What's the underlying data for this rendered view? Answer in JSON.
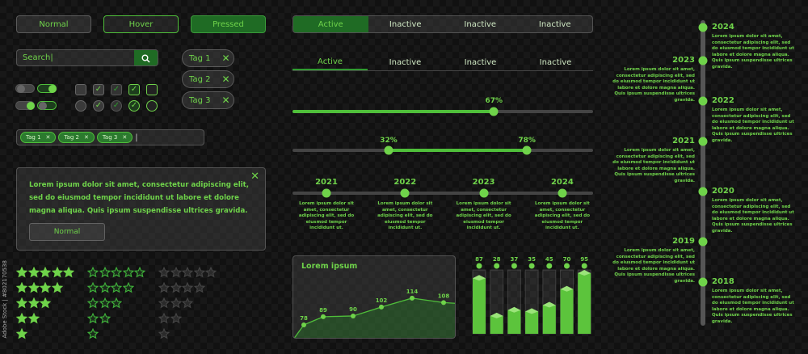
{
  "buttons": {
    "normal": "Normal",
    "hover": "Hover",
    "pressed": "Pressed"
  },
  "search": {
    "value": "Search",
    "icon": "search-icon"
  },
  "tags": [
    "Tag 1",
    "Tag 2",
    "Tag 3"
  ],
  "tag_input": {
    "chips": [
      "Tag 1",
      "Tag 2",
      "Tag 3"
    ]
  },
  "toggles": [
    {
      "on": false
    },
    {
      "on": true
    },
    {
      "on": true
    },
    {
      "on": false
    }
  ],
  "checkboxes": {
    "square": [
      false,
      true,
      true,
      true,
      false
    ],
    "round": [
      false,
      true,
      true,
      true,
      false
    ]
  },
  "alert": {
    "text": "Lorem ipsum dolor sit amet, consectetur adipiscing elit, sed do eiusmod tempor incididunt ut labore et dolore magna aliqua. Quis ipsum suspendisse ultrices gravida.",
    "button": "Normal",
    "close_icon": "close-icon"
  },
  "ratings": {
    "styles": [
      "filled",
      "outline",
      "dark"
    ],
    "levels": [
      5,
      4,
      3,
      2,
      1
    ]
  },
  "segmented_tabs": [
    {
      "label": "Active",
      "active": true
    },
    {
      "label": "Inactive"
    },
    {
      "label": "Inactive"
    },
    {
      "label": "Inactive"
    }
  ],
  "underline_tabs": [
    {
      "label": "Active",
      "active": true
    },
    {
      "label": "Inactive"
    },
    {
      "label": "Inactive"
    },
    {
      "label": "Inactive"
    }
  ],
  "slider": {
    "value": 67,
    "label": "67%"
  },
  "range_slider": {
    "low": 32,
    "high": 78,
    "low_label": "32%",
    "high_label": "78%"
  },
  "h_timeline": [
    {
      "year": "2021",
      "text": "Lorem ipsum dolor sit amet, consectetur adipiscing elit, sed do eiusmod tempor incididunt ut."
    },
    {
      "year": "2022",
      "text": "Lorem ipsum dolor sit amet, consectetur adipiscing elit, sed do eiusmod tempor incididunt ut."
    },
    {
      "year": "2023",
      "text": "Lorem ipsum dolor sit amet, consectetur adipiscing elit, sed do eiusmod tempor incididunt ut."
    },
    {
      "year": "2024",
      "text": "Lorem ipsum dolor sit amet, consectetur adipiscing elit, sed do eiusmod tempor incididunt ut."
    }
  ],
  "line_chart": {
    "title": "Lorem ipsum",
    "values": [
      78,
      89,
      90,
      102,
      114,
      108
    ]
  },
  "bar_chart": {
    "values": [
      87,
      28,
      37,
      35,
      45,
      70,
      95
    ]
  },
  "v_timeline": [
    {
      "year": "2024",
      "side": "right",
      "text": "Lorem ipsum dolor sit amet, consectetur adipiscing elit, sed do eiusmod tempor incididunt ut labore et dolore magna aliqua. Quis ipsum suspendisse ultrices gravida."
    },
    {
      "year": "2023",
      "side": "left",
      "text": "Lorem ipsum dolor sit amet, consectetur adipiscing elit, sed do eiusmod tempor incididunt ut labore et dolore magna aliqua. Quis ipsum suspendisse ultrices gravida."
    },
    {
      "year": "2022",
      "side": "right",
      "text": "Lorem ipsum dolor sit amet, consectetur adipiscing elit, sed do eiusmod tempor incididunt ut labore et dolore magna aliqua. Quis ipsum suspendisse ultrices gravida."
    },
    {
      "year": "2021",
      "side": "left",
      "text": "Lorem ipsum dolor sit amet, consectetur adipiscing elit, sed do eiusmod tempor incididunt ut labore et dolore magna aliqua. Quis ipsum suspendisse ultrices gravida."
    },
    {
      "year": "2020",
      "side": "right",
      "text": "Lorem ipsum dolor sit amet, consectetur adipiscing elit, sed do eiusmod tempor incididunt ut labore et dolore magna aliqua. Quis ipsum suspendisse ultrices gravida."
    },
    {
      "year": "2019",
      "side": "left",
      "text": "Lorem ipsum dolor sit amet, consectetur adipiscing elit, sed do eiusmod tempor incididunt ut labore et dolore magna aliqua. Quis ipsum suspendisse ultrices gravida."
    },
    {
      "year": "2018",
      "side": "right",
      "text": "Lorem ipsum dolor sit amet, consectetur adipiscing elit, sed do eiusmod tempor incididunt ut labore et dolore magna aliqua. Quis ipsum suspendisse ultrices gravida."
    }
  ],
  "watermark": "Adobe Stock | #802170538",
  "colors": {
    "accent": "#6fd34a",
    "pressed": "#1f6b24",
    "background": "#111111"
  }
}
